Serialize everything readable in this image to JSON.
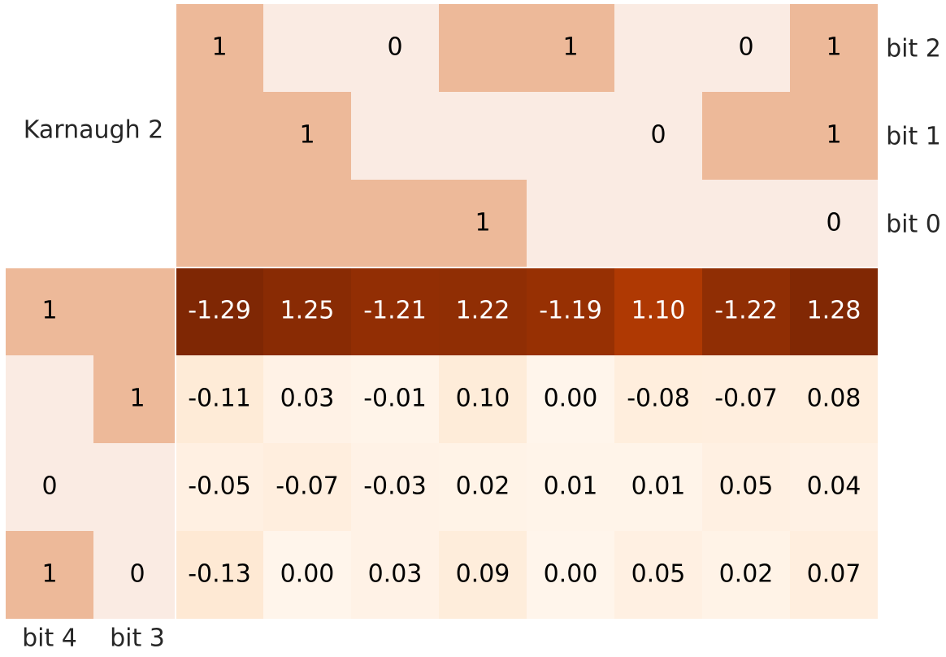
{
  "chart_data": {
    "type": "heatmap",
    "title": "Karnaugh 2",
    "colors": {
      "on": "#EDB999",
      "off": "#FAEBE3",
      "separator": "#ffffff"
    },
    "top_header": {
      "row_labels": [
        "bit 2",
        "bit 1",
        "bit 0"
      ],
      "rows": [
        [
          "1",
          "0",
          "0",
          "1",
          "1",
          "0",
          "0",
          "1"
        ],
        [
          "1",
          "1",
          "0",
          "0",
          "0",
          "0",
          "1",
          "1"
        ],
        [
          "1",
          "1",
          "1",
          "1",
          "0",
          "0",
          "0",
          "0"
        ]
      ],
      "shown": [
        [
          true,
          false,
          true,
          false,
          true,
          false,
          true,
          true
        ],
        [
          false,
          true,
          false,
          false,
          false,
          true,
          false,
          true
        ],
        [
          false,
          false,
          false,
          true,
          false,
          false,
          false,
          true
        ]
      ]
    },
    "left_header": {
      "column_labels": [
        "bit 4",
        "bit 3"
      ],
      "rows": [
        [
          "1",
          "1"
        ],
        [
          "0",
          "1"
        ],
        [
          "0",
          "0"
        ],
        [
          "1",
          "0"
        ]
      ],
      "shown": [
        [
          true,
          false
        ],
        [
          false,
          true
        ],
        [
          true,
          false
        ],
        [
          true,
          true
        ]
      ]
    },
    "values": [
      [
        -1.29,
        1.25,
        -1.21,
        1.22,
        -1.19,
        1.1,
        -1.22,
        1.28
      ],
      [
        -0.11,
        0.03,
        -0.01,
        0.1,
        0.0,
        -0.08,
        -0.07,
        0.08
      ],
      [
        -0.05,
        -0.07,
        -0.03,
        0.02,
        0.01,
        0.01,
        0.05,
        0.04
      ],
      [
        -0.13,
        0.0,
        0.03,
        0.09,
        -0.0,
        0.05,
        0.02,
        0.07
      ]
    ],
    "colormap": "Oranges (by |value|)"
  }
}
